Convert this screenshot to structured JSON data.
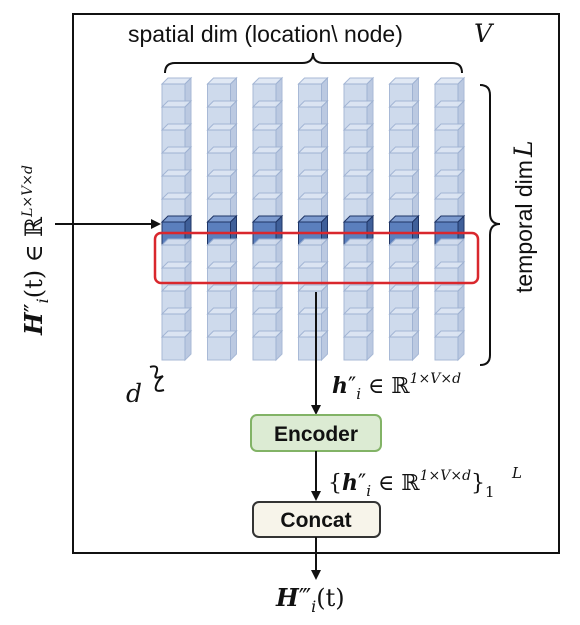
{
  "spatial_label": "spatial dim (location\\ node)",
  "spatial_symbol": "V",
  "temporal_label": "temporal dim",
  "temporal_symbol": "L",
  "depth_symbol": "d",
  "input_label": {
    "base": "H",
    "prime": "″",
    "sub": "i",
    "arg": "(t) ∈ ℝ",
    "sup": "L×V×d"
  },
  "slice_label": {
    "base": "h",
    "prime": "″",
    "sub": "i",
    "rel": " ∈ ℝ",
    "sup": "1×V×d"
  },
  "encoder_label": "Encoder",
  "set_label": {
    "open": "{",
    "base": "h",
    "prime": "″",
    "sub": "i",
    "rel": " ∈ ℝ",
    "sup": "1×V×d",
    "close": "}",
    "lower": "1",
    "upper": "L"
  },
  "concat_label": "Concat",
  "output_label": {
    "base": "H",
    "prime": "‴",
    "sub": "i",
    "arg": "(t)"
  },
  "colors": {
    "cube_light": "#c9d6ea",
    "cube_dark": "#5b7fbd",
    "highlight": "#d9272d",
    "encoder_fill": "#dcebd3",
    "encoder_stroke": "#82b366",
    "concat_fill": "#f7f4ea",
    "concat_stroke": "#333333"
  }
}
